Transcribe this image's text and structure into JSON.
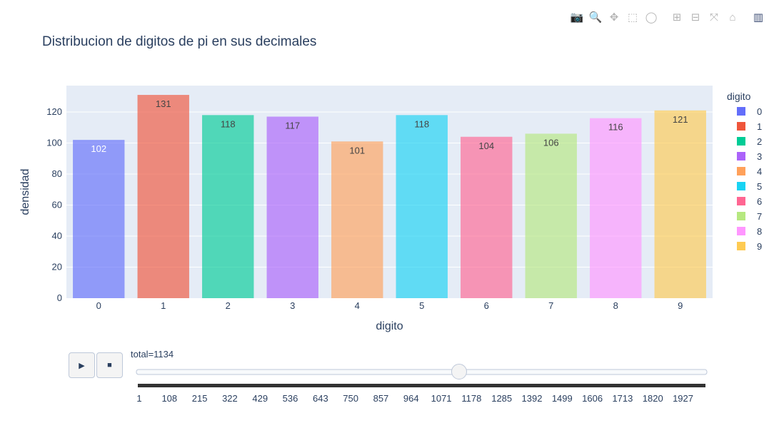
{
  "modebar": {
    "icons": [
      "camera-icon",
      "zoom-icon",
      "pan-icon",
      "box-select-icon",
      "lasso-select-icon",
      "zoom-in-icon",
      "zoom-out-icon",
      "autoscale-icon",
      "reset-axes-icon",
      "plotly-logo-icon"
    ],
    "glyphs": [
      "📷",
      "🔍",
      "✥",
      "⬚",
      "◯",
      "⊞",
      "⊟",
      "⤧",
      "⌂",
      "▥"
    ]
  },
  "controls": {
    "play_symbol": "▶",
    "stop_symbol": "■"
  },
  "slider": {
    "current_label": "total=1134",
    "current_value": 1134,
    "min": 1,
    "max": 1999,
    "ticks": [
      "1",
      "108",
      "215",
      "322",
      "429",
      "536",
      "643",
      "750",
      "857",
      "964",
      "1071",
      "1178",
      "1285",
      "1392",
      "1499",
      "1606",
      "1713",
      "1820",
      "1927"
    ]
  },
  "chart_data": {
    "type": "bar",
    "title": "Distribucion de digitos de pi en sus decimales",
    "xlabel": "digito",
    "ylabel": "densidad",
    "categories": [
      "0",
      "1",
      "2",
      "3",
      "4",
      "5",
      "6",
      "7",
      "8",
      "9"
    ],
    "values": [
      102,
      131,
      118,
      117,
      101,
      118,
      104,
      106,
      116,
      121
    ],
    "ylim": [
      0,
      137
    ],
    "yticks": [
      0,
      20,
      40,
      60,
      80,
      100,
      120
    ],
    "grid": true,
    "legend": {
      "title": "digito",
      "placement": "right",
      "entries": [
        "0",
        "1",
        "2",
        "3",
        "4",
        "5",
        "6",
        "7",
        "8",
        "9"
      ]
    },
    "colors": [
      "#636efa",
      "#EF553B",
      "#00cc96",
      "#ab63fa",
      "#FFA15A",
      "#19d3f3",
      "#FF6692",
      "#B6E880",
      "#FF97FF",
      "#FECB52"
    ],
    "label_colors": [
      "#ffffff",
      "#444444",
      "#444444",
      "#444444",
      "#444444",
      "#444444",
      "#444444",
      "#444444",
      "#444444",
      "#444444"
    ],
    "bar_opacity": 0.65,
    "plot_bg": "#e5ecf6"
  }
}
